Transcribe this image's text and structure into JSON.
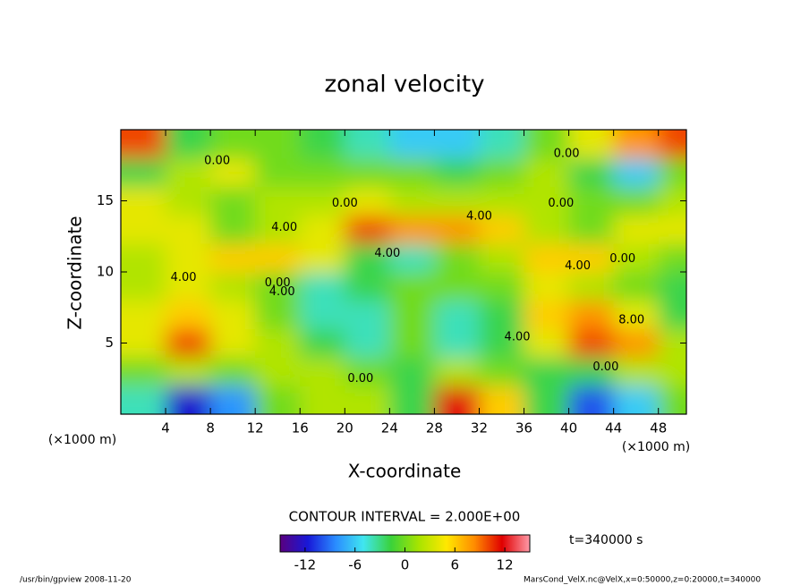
{
  "chart_data": {
    "type": "contour",
    "title": "zonal velocity",
    "xlabel": "X-coordinate",
    "ylabel": "Z-coordinate",
    "x_unit_left": "(×1000 m)",
    "x_unit_right": "(×1000 m)",
    "contour_interval_text": "CONTOUR INTERVAL = 2.000E+00",
    "time_text": "t=340000 s",
    "footer_left": "/usr/bin/gpview  2008-11-20",
    "footer_right": "MarsCond_VelX.nc@VelX,x=0:50000,z=0:20000,t=340000",
    "x": [
      2,
      6,
      10,
      14,
      18,
      22,
      26,
      30,
      34,
      38,
      42,
      46,
      50
    ],
    "y": [
      1,
      3,
      5,
      7,
      9,
      11,
      13,
      15,
      17,
      19
    ],
    "z": [
      [
        -4,
        -12,
        -8,
        0,
        2,
        2,
        -2,
        12,
        6,
        -2,
        -10,
        -6,
        0
      ],
      [
        0,
        2,
        0,
        2,
        2,
        0,
        -2,
        2,
        0,
        -2,
        -2,
        2,
        2
      ],
      [
        4,
        10,
        4,
        2,
        -2,
        -4,
        0,
        -4,
        -2,
        4,
        10,
        8,
        2
      ],
      [
        4,
        6,
        4,
        0,
        -4,
        -4,
        0,
        -4,
        -2,
        6,
        8,
        4,
        -2
      ],
      [
        2,
        4,
        2,
        0,
        -4,
        -2,
        0,
        0,
        0,
        4,
        2,
        0,
        -2
      ],
      [
        2,
        4,
        6,
        6,
        4,
        -2,
        -4,
        0,
        2,
        6,
        6,
        2,
        0
      ],
      [
        4,
        4,
        0,
        2,
        4,
        10,
        8,
        8,
        6,
        2,
        0,
        4,
        4
      ],
      [
        4,
        2,
        0,
        2,
        2,
        4,
        2,
        2,
        2,
        2,
        0,
        0,
        2
      ],
      [
        -2,
        2,
        4,
        0,
        0,
        0,
        0,
        -2,
        0,
        2,
        -2,
        -6,
        0
      ],
      [
        10,
        -2,
        0,
        0,
        -2,
        -4,
        -6,
        -6,
        -4,
        0,
        4,
        8,
        10
      ]
    ],
    "xlim": [
      0,
      50.5
    ],
    "ylim": [
      0,
      20
    ],
    "xticks": [
      4,
      8,
      12,
      16,
      20,
      24,
      28,
      32,
      36,
      40,
      44,
      48
    ],
    "yticks": [
      5,
      10,
      15
    ],
    "clim": [
      -15,
      15
    ],
    "colorbar_ticks": [
      -12,
      -6,
      0,
      6,
      12
    ],
    "colormap": [
      "#5a007f",
      "#1818d8",
      "#2a8cff",
      "#40e6f0",
      "#3ad23a",
      "#a8e400",
      "#ffe800",
      "#ff8c00",
      "#e00000",
      "#ff9aa8"
    ],
    "annotations": [
      {
        "text": "0.00",
        "x": 8.6,
        "y": 17.8
      },
      {
        "text": "0.00",
        "x": 39.8,
        "y": 18.3
      },
      {
        "text": "0.00",
        "x": 20,
        "y": 14.8
      },
      {
        "text": "4.00",
        "x": 32,
        "y": 13.9
      },
      {
        "text": "0.00",
        "x": 39.3,
        "y": 14.8
      },
      {
        "text": "4.00",
        "x": 14.6,
        "y": 13.1
      },
      {
        "text": "4.00",
        "x": 23.8,
        "y": 11.3
      },
      {
        "text": "4.00",
        "x": 5.6,
        "y": 9.6
      },
      {
        "text": "0.00",
        "x": 14,
        "y": 9.2
      },
      {
        "text": "4.00",
        "x": 14.4,
        "y": 8.6
      },
      {
        "text": "4.00",
        "x": 40.8,
        "y": 10.4
      },
      {
        "text": "0.00",
        "x": 44.8,
        "y": 10.9
      },
      {
        "text": "8.00",
        "x": 45.6,
        "y": 6.6
      },
      {
        "text": "4.00",
        "x": 35.4,
        "y": 5.4
      },
      {
        "text": "0.00",
        "x": 43.3,
        "y": 3.3
      },
      {
        "text": "0.00",
        "x": 21.4,
        "y": 2.5
      }
    ]
  }
}
